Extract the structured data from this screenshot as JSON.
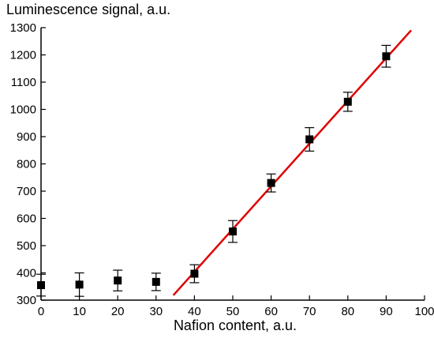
{
  "chart_data": {
    "type": "scatter",
    "title": "",
    "ylabel": "Luminescence signal, a.u.",
    "xlabel": "Nafion content, a.u.",
    "xlim": [
      0,
      100
    ],
    "ylim": [
      300,
      1300
    ],
    "x_ticks": [
      0,
      10,
      20,
      30,
      40,
      50,
      60,
      70,
      80,
      90,
      100
    ],
    "y_ticks": [
      300,
      400,
      500,
      600,
      700,
      800,
      900,
      1000,
      1100,
      1200,
      1300
    ],
    "grid": false,
    "series": [
      {
        "marker": "square",
        "color": "#000000",
        "points": [
          {
            "x": 0,
            "y": 355,
            "err": 40
          },
          {
            "x": 10,
            "y": 357,
            "err": 43
          },
          {
            "x": 20,
            "y": 372,
            "err": 38
          },
          {
            "x": 30,
            "y": 367,
            "err": 32
          },
          {
            "x": 40,
            "y": 397,
            "err": 33
          },
          {
            "x": 50,
            "y": 552,
            "err": 40
          },
          {
            "x": 60,
            "y": 730,
            "err": 33
          },
          {
            "x": 70,
            "y": 890,
            "err": 43
          },
          {
            "x": 80,
            "y": 1028,
            "err": 35
          },
          {
            "x": 90,
            "y": 1195,
            "err": 40
          }
        ]
      }
    ],
    "fit_line": {
      "color": "#e00000",
      "from": {
        "x": 34.5,
        "y": 318
      },
      "to": {
        "x": 96.5,
        "y": 1290
      }
    }
  }
}
